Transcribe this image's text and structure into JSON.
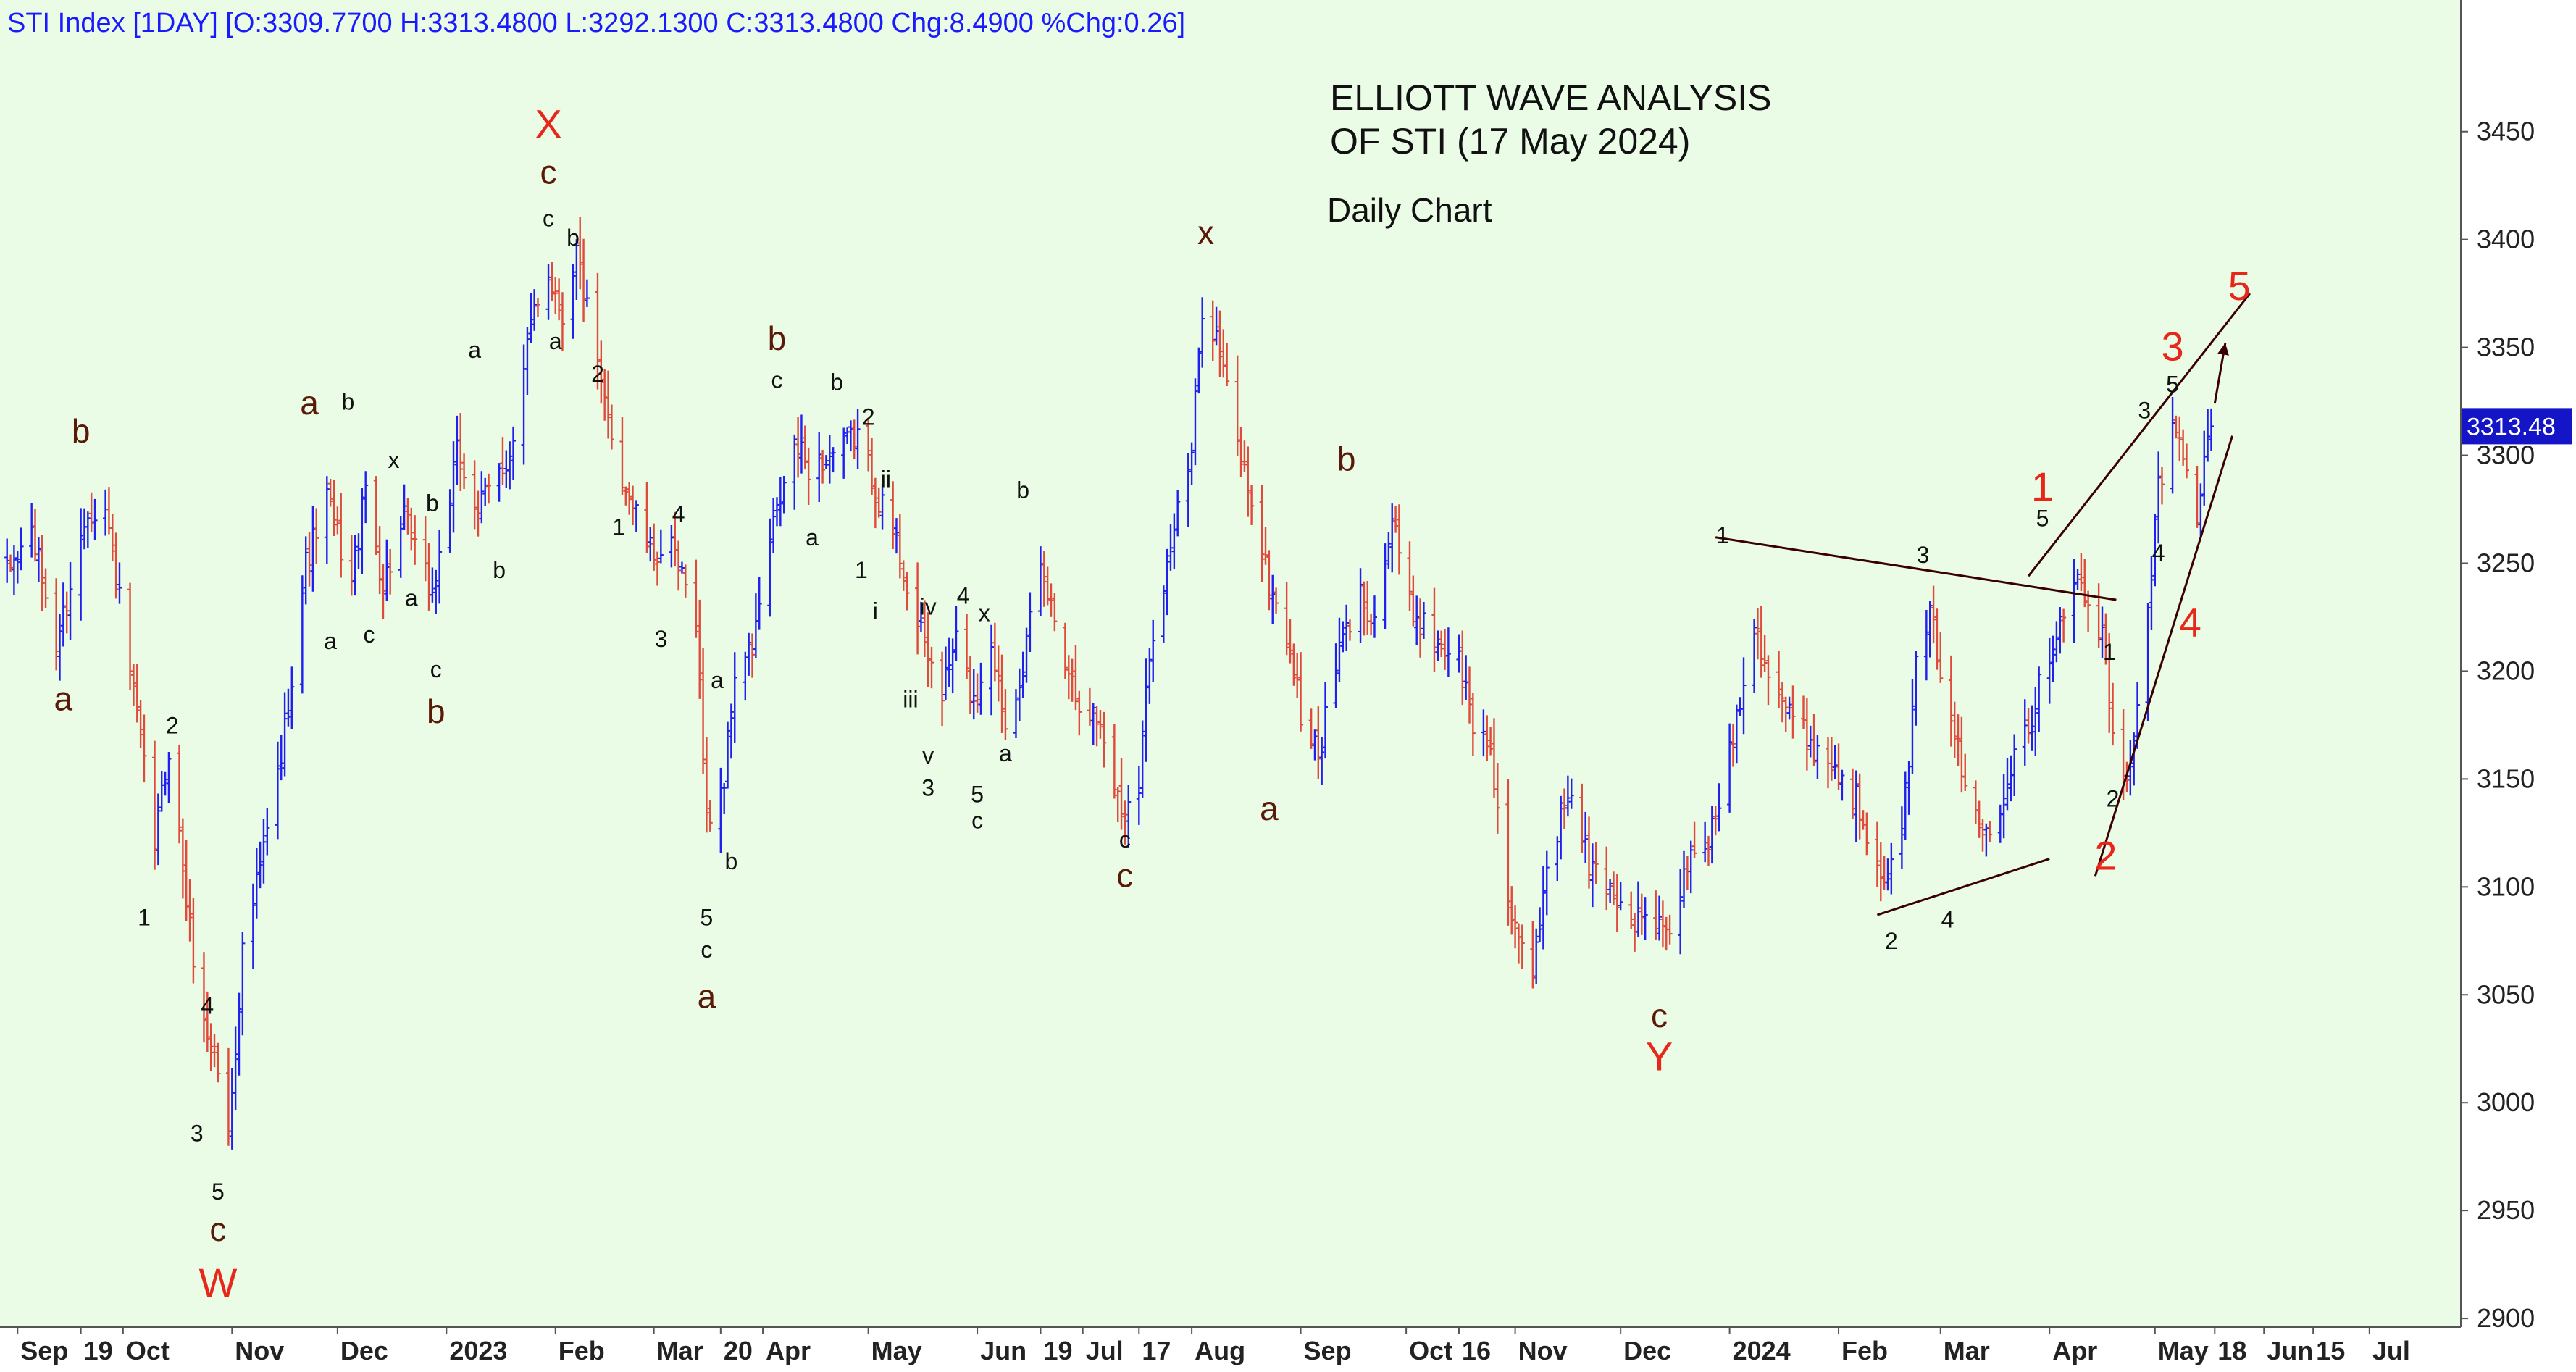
{
  "header_text": "STI Index [1DAY] [O:3309.7700 H:3313.4800 L:3292.1300 C:3313.4800 Chg:8.4900 %Chg:0.26]",
  "title_line1": "ELLIOTT WAVE ANALYSIS",
  "title_line2": "OF STI (17 May 2024)",
  "subtitle": "Daily Chart",
  "last_price_label": "3313.48",
  "colors": {
    "background": "#eafbe6",
    "up_bar": "#1f1ff0",
    "down_bar": "#e04a3a",
    "label_dark": "#111111",
    "label_brown": "#5a1a0a",
    "label_red": "#e8261a",
    "trendline": "#3a0000",
    "price_tag_bg": "#1515c8"
  },
  "chart_data": {
    "type": "ohlc",
    "title": "ELLIOTT WAVE ANALYSIS OF STI (17 May 2024)",
    "subtitle": "Daily Chart",
    "ylim": [
      2900,
      3500
    ],
    "y_ticks": [
      2900,
      2950,
      3000,
      3050,
      3100,
      3150,
      3200,
      3250,
      3300,
      3350,
      3400,
      3450
    ],
    "x_range": [
      "2022-08-27",
      "2024-07-27"
    ],
    "x_ticks": [
      {
        "date": "2022-09-01",
        "label": "Sep"
      },
      {
        "date": "2022-09-19",
        "label": "19"
      },
      {
        "date": "2022-10-01",
        "label": "Oct"
      },
      {
        "date": "2022-11-01",
        "label": "Nov"
      },
      {
        "date": "2022-12-01",
        "label": "Dec"
      },
      {
        "date": "2023-01-01",
        "label": "2023"
      },
      {
        "date": "2023-02-01",
        "label": "Feb"
      },
      {
        "date": "2023-03-01",
        "label": "Mar"
      },
      {
        "date": "2023-03-20",
        "label": "20"
      },
      {
        "date": "2023-04-01",
        "label": "Apr"
      },
      {
        "date": "2023-05-01",
        "label": "May"
      },
      {
        "date": "2023-06-01",
        "label": "Jun"
      },
      {
        "date": "2023-06-19",
        "label": "19"
      },
      {
        "date": "2023-07-01",
        "label": "Jul"
      },
      {
        "date": "2023-07-17",
        "label": "17"
      },
      {
        "date": "2023-08-01",
        "label": "Aug"
      },
      {
        "date": "2023-09-01",
        "label": "Sep"
      },
      {
        "date": "2023-10-01",
        "label": "Oct"
      },
      {
        "date": "2023-10-16",
        "label": "16"
      },
      {
        "date": "2023-11-01",
        "label": "Nov"
      },
      {
        "date": "2023-12-01",
        "label": "Dec"
      },
      {
        "date": "2024-01-01",
        "label": "2024"
      },
      {
        "date": "2024-02-01",
        "label": "Feb"
      },
      {
        "date": "2024-03-01",
        "label": "Mar"
      },
      {
        "date": "2024-04-01",
        "label": "Apr"
      },
      {
        "date": "2024-05-01",
        "label": "May"
      },
      {
        "date": "2024-05-18",
        "label": "18"
      },
      {
        "date": "2024-06-01",
        "label": "Jun"
      },
      {
        "date": "2024-06-15",
        "label": "15"
      },
      {
        "date": "2024-07-01",
        "label": "Jul"
      }
    ],
    "last_close": 3313.48,
    "price_path": [
      [
        "2022-08-29",
        3245
      ],
      [
        "2022-09-05",
        3265
      ],
      [
        "2022-09-12",
        3212
      ],
      [
        "2022-09-21",
        3275
      ],
      [
        "2022-09-26",
        3275
      ],
      [
        "2022-10-03",
        3200
      ],
      [
        "2022-10-10",
        3120
      ],
      [
        "2022-10-14",
        3165
      ],
      [
        "2022-10-20",
        3080
      ],
      [
        "2022-10-24",
        3035
      ],
      [
        "2022-10-27",
        3025
      ],
      [
        "2022-10-31",
        2985
      ],
      [
        "2022-11-04",
        3070
      ],
      [
        "2022-11-08",
        3100
      ],
      [
        "2022-11-15",
        3160
      ],
      [
        "2022-11-22",
        3250
      ],
      [
        "2022-11-28",
        3280
      ],
      [
        "2022-12-05",
        3240
      ],
      [
        "2022-12-09",
        3285
      ],
      [
        "2022-12-14",
        3240
      ],
      [
        "2022-12-20",
        3270
      ],
      [
        "2022-12-28",
        3235
      ],
      [
        "2023-01-04",
        3300
      ],
      [
        "2023-01-10",
        3275
      ],
      [
        "2023-01-17",
        3295
      ],
      [
        "2023-01-20",
        3305
      ],
      [
        "2023-01-26",
        3370
      ],
      [
        "2023-01-30",
        3385
      ],
      [
        "2023-02-03",
        3365
      ],
      [
        "2023-02-07",
        3395
      ],
      [
        "2023-02-14",
        3330
      ],
      [
        "2023-02-20",
        3290
      ],
      [
        "2023-02-28",
        3255
      ],
      [
        "2023-03-06",
        3255
      ],
      [
        "2023-03-13",
        3225
      ],
      [
        "2023-03-16",
        3130
      ],
      [
        "2023-03-21",
        3150
      ],
      [
        "2023-03-24",
        3200
      ],
      [
        "2023-03-29",
        3210
      ],
      [
        "2023-04-03",
        3260
      ],
      [
        "2023-04-10",
        3305
      ],
      [
        "2023-04-14",
        3295
      ],
      [
        "2023-04-21",
        3300
      ],
      [
        "2023-04-28",
        3310
      ],
      [
        "2023-05-04",
        3280
      ],
      [
        "2023-05-09",
        3260
      ],
      [
        "2023-05-15",
        3220
      ],
      [
        "2023-05-22",
        3190
      ],
      [
        "2023-05-26",
        3215
      ],
      [
        "2023-05-31",
        3185
      ],
      [
        "2023-06-05",
        3215
      ],
      [
        "2023-06-09",
        3175
      ],
      [
        "2023-06-14",
        3205
      ],
      [
        "2023-06-19",
        3245
      ],
      [
        "2023-06-23",
        3225
      ],
      [
        "2023-06-29",
        3190
      ],
      [
        "2023-07-06",
        3175
      ],
      [
        "2023-07-12",
        3135
      ],
      [
        "2023-07-17",
        3150
      ],
      [
        "2023-07-20",
        3210
      ],
      [
        "2023-07-26",
        3260
      ],
      [
        "2023-08-01",
        3300
      ],
      [
        "2023-08-04",
        3370
      ],
      [
        "2023-08-08",
        3355
      ],
      [
        "2023-08-14",
        3305
      ],
      [
        "2023-08-18",
        3280
      ],
      [
        "2023-08-23",
        3240
      ],
      [
        "2023-08-29",
        3210
      ],
      [
        "2023-09-01",
        3180
      ],
      [
        "2023-09-06",
        3160
      ],
      [
        "2023-09-12",
        3210
      ],
      [
        "2023-09-18",
        3235
      ],
      [
        "2023-09-22",
        3225
      ],
      [
        "2023-09-27",
        3270
      ],
      [
        "2023-10-02",
        3230
      ],
      [
        "2023-10-09",
        3215
      ],
      [
        "2023-10-16",
        3205
      ],
      [
        "2023-10-20",
        3175
      ],
      [
        "2023-10-25",
        3165
      ],
      [
        "2023-10-31",
        3080
      ],
      [
        "2023-11-06",
        3060
      ],
      [
        "2023-11-10",
        3110
      ],
      [
        "2023-11-16",
        3145
      ],
      [
        "2023-11-22",
        3110
      ],
      [
        "2023-11-28",
        3100
      ],
      [
        "2023-12-04",
        3085
      ],
      [
        "2023-12-11",
        3085
      ],
      [
        "2023-12-14",
        3075
      ],
      [
        "2023-12-20",
        3110
      ],
      [
        "2023-12-27",
        3125
      ],
      [
        "2024-01-03",
        3180
      ],
      [
        "2024-01-08",
        3225
      ],
      [
        "2024-01-12",
        3200
      ],
      [
        "2024-01-18",
        3180
      ],
      [
        "2024-01-25",
        3165
      ],
      [
        "2024-01-31",
        3155
      ],
      [
        "2024-02-06",
        3140
      ],
      [
        "2024-02-13",
        3110
      ],
      [
        "2024-02-18",
        3105
      ],
      [
        "2024-02-23",
        3200
      ],
      [
        "2024-02-27",
        3225
      ],
      [
        "2024-03-04",
        3180
      ],
      [
        "2024-03-08",
        3145
      ],
      [
        "2024-03-13",
        3125
      ],
      [
        "2024-03-18",
        3140
      ],
      [
        "2024-03-22",
        3165
      ],
      [
        "2024-03-27",
        3180
      ],
      [
        "2024-04-01",
        3210
      ],
      [
        "2024-04-05",
        3230
      ],
      [
        "2024-04-08",
        3245
      ],
      [
        "2024-04-12",
        3230
      ],
      [
        "2024-04-16",
        3215
      ],
      [
        "2024-04-19",
        3170
      ],
      [
        "2024-04-23",
        3145
      ],
      [
        "2024-04-29",
        3230
      ],
      [
        "2024-05-02",
        3285
      ],
      [
        "2024-05-06",
        3310
      ],
      [
        "2024-05-08",
        3305
      ],
      [
        "2024-05-10",
        3290
      ],
      [
        "2024-05-13",
        3270
      ],
      [
        "2024-05-15",
        3295
      ],
      [
        "2024-05-17",
        3313.48
      ]
    ],
    "annotations": [
      {
        "text": "b",
        "date": "2022-09-19",
        "price": 3310,
        "style": "major"
      },
      {
        "text": "a",
        "date": "2022-09-14",
        "price": 3186,
        "style": "major"
      },
      {
        "text": "2",
        "date": "2022-10-15",
        "price": 3174,
        "style": "minor"
      },
      {
        "text": "1",
        "date": "2022-10-07",
        "price": 3085,
        "style": "minor"
      },
      {
        "text": "4",
        "date": "2022-10-25",
        "price": 3044,
        "style": "minor"
      },
      {
        "text": "3",
        "date": "2022-10-22",
        "price": 2985,
        "style": "minor"
      },
      {
        "text": "5",
        "date": "2022-10-28",
        "price": 2958,
        "style": "minor"
      },
      {
        "text": "c",
        "date": "2022-10-28",
        "price": 2940,
        "style": "major"
      },
      {
        "text": "W",
        "date": "2022-10-28",
        "price": 2915,
        "style": "red"
      },
      {
        "text": "a",
        "date": "2022-11-23",
        "price": 3323,
        "style": "major"
      },
      {
        "text": "b",
        "date": "2022-12-04",
        "price": 3324,
        "style": "minor"
      },
      {
        "text": "a",
        "date": "2022-11-29",
        "price": 3213,
        "style": "minor"
      },
      {
        "text": "c",
        "date": "2022-12-10",
        "price": 3216,
        "style": "minor"
      },
      {
        "text": "x",
        "date": "2022-12-17",
        "price": 3297,
        "style": "minor"
      },
      {
        "text": "a",
        "date": "2022-12-22",
        "price": 3233,
        "style": "minor"
      },
      {
        "text": "b",
        "date": "2022-12-28",
        "price": 3277,
        "style": "minor"
      },
      {
        "text": "c",
        "date": "2022-12-29",
        "price": 3200,
        "style": "minor"
      },
      {
        "text": "b",
        "date": "2022-12-29",
        "price": 3180,
        "style": "major"
      },
      {
        "text": "a",
        "date": "2023-01-09",
        "price": 3348,
        "style": "minor"
      },
      {
        "text": "b",
        "date": "2023-01-16",
        "price": 3246,
        "style": "minor"
      },
      {
        "text": "X",
        "date": "2023-01-30",
        "price": 3452,
        "style": "red"
      },
      {
        "text": "c",
        "date": "2023-01-30",
        "price": 3430,
        "style": "major"
      },
      {
        "text": "c",
        "date": "2023-01-30",
        "price": 3409,
        "style": "minor"
      },
      {
        "text": "b",
        "date": "2023-02-06",
        "price": 3400,
        "style": "minor"
      },
      {
        "text": "a",
        "date": "2023-02-01",
        "price": 3352,
        "style": "minor"
      },
      {
        "text": "2",
        "date": "2023-02-13",
        "price": 3337,
        "style": "minor"
      },
      {
        "text": "1",
        "date": "2023-02-19",
        "price": 3266,
        "style": "minor"
      },
      {
        "text": "4",
        "date": "2023-03-08",
        "price": 3272,
        "style": "minor"
      },
      {
        "text": "3",
        "date": "2023-03-03",
        "price": 3214,
        "style": "minor"
      },
      {
        "text": "a",
        "date": "2023-03-19",
        "price": 3195,
        "style": "minor"
      },
      {
        "text": "b",
        "date": "2023-03-23",
        "price": 3111,
        "style": "minor"
      },
      {
        "text": "5",
        "date": "2023-03-16",
        "price": 3085,
        "style": "minor"
      },
      {
        "text": "c",
        "date": "2023-03-16",
        "price": 3070,
        "style": "minor"
      },
      {
        "text": "a",
        "date": "2023-03-16",
        "price": 3048,
        "style": "major"
      },
      {
        "text": "b",
        "date": "2023-04-05",
        "price": 3353,
        "style": "major"
      },
      {
        "text": "c",
        "date": "2023-04-05",
        "price": 3334,
        "style": "minor"
      },
      {
        "text": "b",
        "date": "2023-04-22",
        "price": 3333,
        "style": "minor"
      },
      {
        "text": "2",
        "date": "2023-05-01",
        "price": 3317,
        "style": "minor"
      },
      {
        "text": "a",
        "date": "2023-04-15",
        "price": 3261,
        "style": "minor"
      },
      {
        "text": "ii",
        "date": "2023-05-06",
        "price": 3288,
        "style": "minor"
      },
      {
        "text": "1",
        "date": "2023-04-29",
        "price": 3246,
        "style": "minor"
      },
      {
        "text": "i",
        "date": "2023-05-03",
        "price": 3227,
        "style": "minor"
      },
      {
        "text": "iv",
        "date": "2023-05-18",
        "price": 3229,
        "style": "minor"
      },
      {
        "text": "4",
        "date": "2023-05-28",
        "price": 3234,
        "style": "minor"
      },
      {
        "text": "x",
        "date": "2023-06-03",
        "price": 3226,
        "style": "minor"
      },
      {
        "text": "iii",
        "date": "2023-05-13",
        "price": 3186,
        "style": "minor"
      },
      {
        "text": "v",
        "date": "2023-05-18",
        "price": 3160,
        "style": "minor"
      },
      {
        "text": "3",
        "date": "2023-05-18",
        "price": 3145,
        "style": "minor"
      },
      {
        "text": "a",
        "date": "2023-06-09",
        "price": 3161,
        "style": "minor"
      },
      {
        "text": "5",
        "date": "2023-06-01",
        "price": 3142,
        "style": "minor"
      },
      {
        "text": "c",
        "date": "2023-06-01",
        "price": 3130,
        "style": "minor"
      },
      {
        "text": "b",
        "date": "2023-06-14",
        "price": 3283,
        "style": "minor"
      },
      {
        "text": "c",
        "date": "2023-07-13",
        "price": 3121,
        "style": "minor"
      },
      {
        "text": "c",
        "date": "2023-07-13",
        "price": 3104,
        "style": "major"
      },
      {
        "text": "x",
        "date": "2023-08-05",
        "price": 3402,
        "style": "major"
      },
      {
        "text": "a",
        "date": "2023-08-23",
        "price": 3135,
        "style": "major"
      },
      {
        "text": "b",
        "date": "2023-09-14",
        "price": 3297,
        "style": "major"
      },
      {
        "text": "c",
        "date": "2023-12-12",
        "price": 3039,
        "style": "major"
      },
      {
        "text": "Y",
        "date": "2023-12-12",
        "price": 3020,
        "style": "red"
      },
      {
        "text": "1",
        "date": "2023-12-30",
        "price": 3262,
        "style": "minor"
      },
      {
        "text": "3",
        "date": "2024-02-25",
        "price": 3253,
        "style": "minor"
      },
      {
        "text": "2",
        "date": "2024-02-16",
        "price": 3074,
        "style": "minor"
      },
      {
        "text": "4",
        "date": "2024-03-03",
        "price": 3084,
        "style": "minor"
      },
      {
        "text": "1",
        "date": "2024-03-30",
        "price": 3284,
        "style": "red"
      },
      {
        "text": "5",
        "date": "2024-03-30",
        "price": 3270,
        "style": "minor"
      },
      {
        "text": "1",
        "date": "2024-04-18",
        "price": 3208,
        "style": "minor"
      },
      {
        "text": "2",
        "date": "2024-04-19",
        "price": 3140,
        "style": "minor"
      },
      {
        "text": "2",
        "date": "2024-04-17",
        "price": 3113,
        "style": "red"
      },
      {
        "text": "3",
        "date": "2024-05-06",
        "price": 3349,
        "style": "red"
      },
      {
        "text": "5",
        "date": "2024-05-06",
        "price": 3332,
        "style": "minor"
      },
      {
        "text": "3",
        "date": "2024-04-28",
        "price": 3320,
        "style": "minor"
      },
      {
        "text": "4",
        "date": "2024-05-02",
        "price": 3254,
        "style": "minor"
      },
      {
        "text": "4",
        "date": "2024-05-11",
        "price": 3221,
        "style": "red"
      },
      {
        "text": "5",
        "date": "2024-05-25",
        "price": 3377,
        "style": "red"
      }
    ],
    "trendlines": [
      {
        "from": [
          "2023-12-28",
          3262
        ],
        "to": [
          "2024-04-20",
          3233
        ]
      },
      {
        "from": [
          "2024-02-12",
          3087
        ],
        "to": [
          "2024-04-01",
          3113
        ]
      },
      {
        "from": [
          "2024-03-26",
          3244
        ],
        "to": [
          "2024-05-28",
          3375
        ]
      },
      {
        "from": [
          "2024-04-14",
          3105
        ],
        "to": [
          "2024-05-23",
          3309
        ]
      }
    ],
    "arrows": [
      {
        "from": [
          "2024-05-18",
          3324
        ],
        "to": [
          "2024-05-21",
          3352
        ]
      }
    ]
  }
}
